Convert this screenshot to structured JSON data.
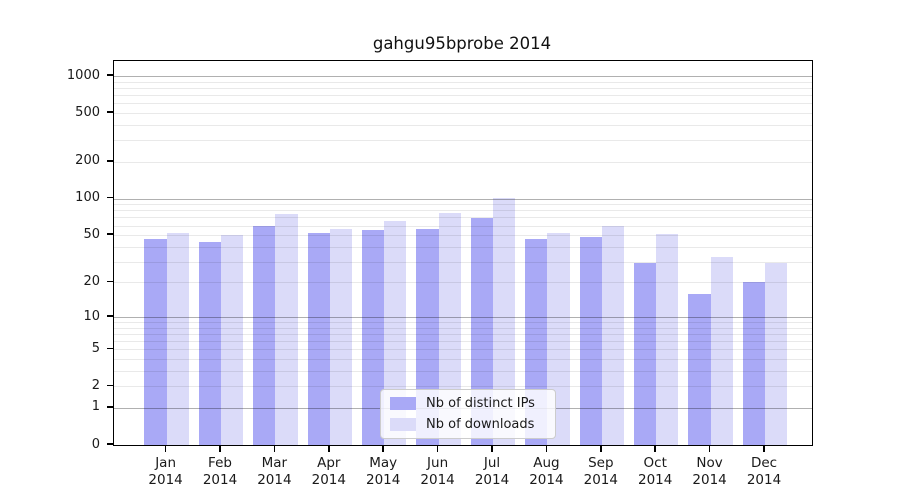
{
  "chart_data": {
    "type": "bar",
    "scale": "log1p",
    "title": "gahgu95bprobe 2014",
    "x_axis": {
      "months": [
        "Jan",
        "Feb",
        "Mar",
        "Apr",
        "May",
        "Jun",
        "Jul",
        "Aug",
        "Sep",
        "Oct",
        "Nov",
        "Dec"
      ],
      "year": "2014"
    },
    "categories": [
      "Jan 2014",
      "Feb 2014",
      "Mar 2014",
      "Apr 2014",
      "May 2014",
      "Jun 2014",
      "Jul 2014",
      "Aug 2014",
      "Sep 2014",
      "Oct 2014",
      "Nov 2014",
      "Dec 2014"
    ],
    "series": [
      {
        "name": "Nb of distinct IPs",
        "color": "#a9a9f6",
        "values": [
          46,
          44,
          60,
          52,
          55,
          56,
          69,
          46,
          48,
          29,
          16,
          20
        ]
      },
      {
        "name": "Nb of downloads",
        "color": "#dbdbf9",
        "values": [
          52,
          50,
          75,
          56,
          65,
          76,
          101,
          52,
          60,
          51,
          33,
          29
        ]
      }
    ],
    "y_axis": {
      "ticks": [
        0,
        1,
        2,
        5,
        10,
        20,
        50,
        100,
        200,
        500,
        1000
      ],
      "major_gridlines": [
        1,
        10,
        100,
        1000
      ],
      "minor_gridlines": [
        2,
        3,
        4,
        5,
        6,
        7,
        8,
        9,
        20,
        30,
        40,
        50,
        60,
        70,
        80,
        90,
        200,
        300,
        400,
        500,
        600,
        700,
        800,
        900
      ],
      "max": 1330
    },
    "legend": {
      "position": "bottom-center"
    },
    "grid": {
      "major_color": "#b0b0b0",
      "minor_color": "#e9e9e9"
    }
  }
}
